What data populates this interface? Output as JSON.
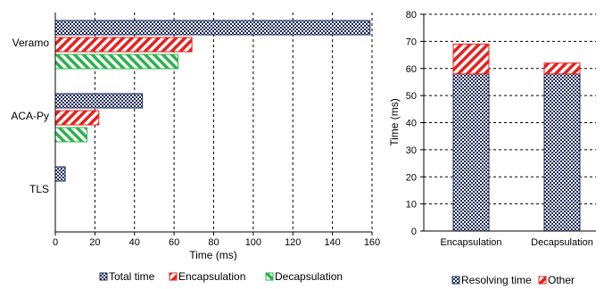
{
  "chart_data": [
    {
      "type": "bar",
      "orientation": "horizontal",
      "categories": [
        "Veramo",
        "ACA-Py",
        "TLS"
      ],
      "series": [
        {
          "name": "Total time",
          "values": [
            159,
            44,
            5
          ]
        },
        {
          "name": "Encapsulation",
          "values": [
            69,
            22,
            null
          ]
        },
        {
          "name": "Decapsulation",
          "values": [
            62,
            16,
            null
          ]
        }
      ],
      "xlabel": "Time (ms)",
      "ylabel": "",
      "xlim": [
        0,
        160
      ],
      "xticks": [
        "0",
        "20",
        "40",
        "60",
        "80",
        "100",
        "120",
        "140",
        "160"
      ],
      "grid": "vertical dashed",
      "legend": "bottom",
      "colors": {
        "Total time": "#1a2a5c",
        "Encapsulation": "#e8201c",
        "Decapsulation": "#2bb24c"
      }
    },
    {
      "type": "bar",
      "stacked": true,
      "categories": [
        "Encapsulation",
        "Decapsulation"
      ],
      "series": [
        {
          "name": "Resolving time",
          "values": [
            58,
            58
          ]
        },
        {
          "name": "Other",
          "values": [
            11,
            4
          ]
        }
      ],
      "xlabel": "",
      "ylabel": "Time (ms)",
      "ylim": [
        0,
        80
      ],
      "yticks": [
        "0",
        "10",
        "20",
        "30",
        "40",
        "50",
        "60",
        "70",
        "80"
      ],
      "grid": "horizontal dashed",
      "legend": "bottom",
      "colors": {
        "Resolving time": "#1a2a5c",
        "Other": "#e8201c"
      }
    }
  ]
}
